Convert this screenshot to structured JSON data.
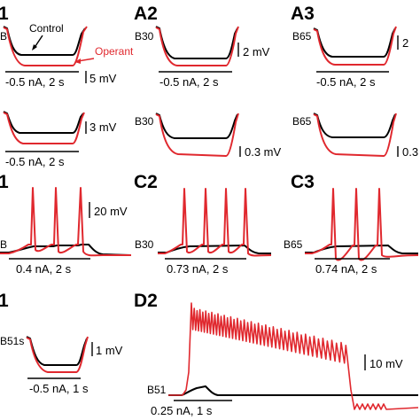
{
  "colors": {
    "control": "#000000",
    "operant": "#e0282e"
  },
  "panels": {
    "a1": {
      "label": "1",
      "cell": "B",
      "stim": "-0.5 nA, 2 s",
      "scale": "5 mV",
      "legend_control": "Control",
      "legend_operant": "Operant"
    },
    "a2": {
      "label": "A2",
      "cell": "B30",
      "stim": "-0.5 nA, 2 s",
      "scale": "2 mV"
    },
    "a3": {
      "label": "A3",
      "cell": "B65",
      "stim": "-0.5 nA, 2 s",
      "scale": "2"
    },
    "b1": {
      "stim": "-0.5 nA, 2 s",
      "scale": "3 mV"
    },
    "b2": {
      "cell": "B30",
      "scale": "0.3 mV"
    },
    "b3": {
      "cell": "B65",
      "scale": "0.3"
    },
    "c1": {
      "label": "1",
      "cell": "B",
      "stim": "0.4 nA, 2 s",
      "scale": "20 mV"
    },
    "c2": {
      "label": "C2",
      "cell": "B30",
      "stim": "0.73 nA, 2 s"
    },
    "c3": {
      "label": "C3",
      "cell": "B65",
      "stim": "0.74 nA, 2 s"
    },
    "d1": {
      "label": "1",
      "cell": "B51s",
      "stim": "-0.5 nA, 1 s",
      "scale": "1 mV"
    },
    "d2": {
      "label": "D2",
      "cell": "B51",
      "stim": "0.25 nA, 1 s",
      "scale": "10 mV"
    }
  }
}
